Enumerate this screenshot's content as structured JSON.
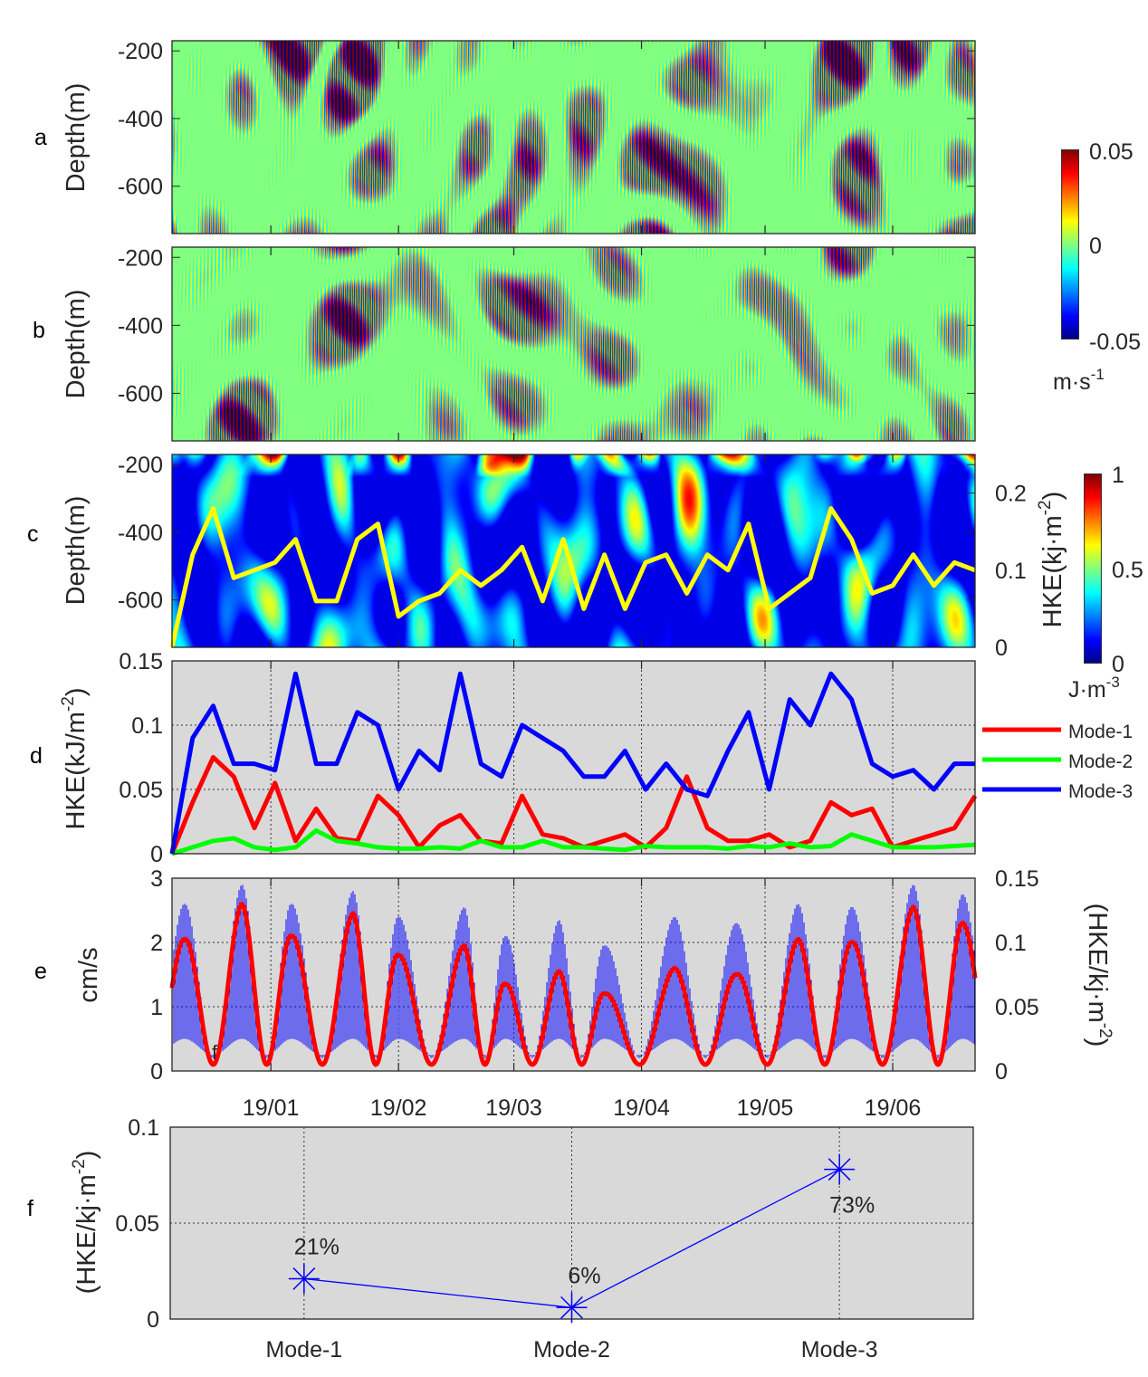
{
  "panel_letters": {
    "a": "a",
    "b": "b",
    "c": "c",
    "d": "d",
    "e": "e",
    "f": "f"
  },
  "colors": {
    "mode1": "#ff0000",
    "mode2": "#00ff00",
    "mode3": "#0000ff",
    "yellow_line": "#ffff00",
    "panel_bg": "#d9d9d9",
    "envelope": "#0000ff",
    "modal_hke": "#ff0000"
  },
  "date_ticks": [
    {
      "date": "2019-01-01",
      "label": "19/01"
    },
    {
      "date": "2019-02-01",
      "label": "19/02"
    },
    {
      "date": "2019-03-01",
      "label": "19/03"
    },
    {
      "date": "2019-04-01",
      "label": "19/04"
    },
    {
      "date": "2019-05-01",
      "label": "19/05"
    },
    {
      "date": "2019-06-01",
      "label": "19/06"
    }
  ],
  "xlim": [
    "2018-12-08",
    "2019-06-21"
  ],
  "chart_data": [
    {
      "id": "a",
      "type": "heatmap",
      "ylabel": "Depth(m)",
      "ylim": [
        -740,
        -170
      ],
      "yticks": [
        -200,
        -400,
        -600
      ],
      "colormap": "jet",
      "clim": [
        -0.05,
        0.05
      ],
      "colorbar": {
        "ticks": [
          "0.05",
          "0",
          "-0.05"
        ],
        "unit": "m·s",
        "unit_sup": "-1"
      }
    },
    {
      "id": "b",
      "type": "heatmap",
      "ylabel": "Depth(m)",
      "ylim": [
        -740,
        -170
      ],
      "yticks": [
        -200,
        -400,
        -600
      ],
      "colormap": "jet",
      "clim": [
        -0.05,
        0.05
      ]
    },
    {
      "id": "c",
      "type": "heatmap",
      "ylabel": "Depth(m)",
      "ylim": [
        -740,
        -170
      ],
      "yticks": [
        -200,
        -400,
        -600
      ],
      "colormap": "jet",
      "clim": [
        0,
        1
      ],
      "colorbar": {
        "ticks": [
          "1",
          "0.5",
          "0"
        ],
        "unit": "J·m",
        "unit_sup": "-3"
      },
      "right_axis": {
        "label": "HKE(kj·m",
        "label_sup": "-2",
        "label_end": ")",
        "ylim": [
          0,
          0.25
        ],
        "yticks": [
          "0",
          "0.1",
          "0.2"
        ]
      },
      "line": {
        "x": [
          "2018-12-08",
          "2018-12-13",
          "2018-12-18",
          "2018-12-23",
          "2018-12-28",
          "2019-01-02",
          "2019-01-07",
          "2019-01-12",
          "2019-01-17",
          "2019-01-22",
          "2019-01-27",
          "2019-02-01",
          "2019-02-06",
          "2019-02-11",
          "2019-02-16",
          "2019-02-21",
          "2019-02-26",
          "2019-03-03",
          "2019-03-08",
          "2019-03-13",
          "2019-03-18",
          "2019-03-23",
          "2019-03-28",
          "2019-04-02",
          "2019-04-07",
          "2019-04-12",
          "2019-04-17",
          "2019-04-22",
          "2019-04-27",
          "2019-05-02",
          "2019-05-07",
          "2019-05-12",
          "2019-05-17",
          "2019-05-22",
          "2019-05-27",
          "2019-06-01",
          "2019-06-06",
          "2019-06-11",
          "2019-06-16",
          "2019-06-21"
        ],
        "y": [
          0,
          0.12,
          0.18,
          0.09,
          0.1,
          0.11,
          0.14,
          0.06,
          0.06,
          0.14,
          0.16,
          0.04,
          0.06,
          0.07,
          0.1,
          0.08,
          0.1,
          0.13,
          0.06,
          0.14,
          0.05,
          0.12,
          0.05,
          0.11,
          0.12,
          0.07,
          0.12,
          0.1,
          0.16,
          0.05,
          0.07,
          0.09,
          0.18,
          0.14,
          0.07,
          0.08,
          0.12,
          0.08,
          0.11,
          0.1
        ]
      }
    },
    {
      "id": "d",
      "type": "line",
      "ylabel": "HKE(kJ/m",
      "ylabel_sup": "-2",
      "ylabel_end": ")",
      "ylim": [
        0,
        0.15
      ],
      "yticks": [
        "0",
        "0.05",
        "0.1",
        "0.15"
      ],
      "grid": true,
      "legend": "right",
      "x": [
        "2018-12-08",
        "2018-12-13",
        "2018-12-18",
        "2018-12-23",
        "2018-12-28",
        "2019-01-02",
        "2019-01-07",
        "2019-01-12",
        "2019-01-17",
        "2019-01-22",
        "2019-01-27",
        "2019-02-01",
        "2019-02-06",
        "2019-02-11",
        "2019-02-16",
        "2019-02-21",
        "2019-02-26",
        "2019-03-03",
        "2019-03-08",
        "2019-03-13",
        "2019-03-18",
        "2019-03-23",
        "2019-03-28",
        "2019-04-02",
        "2019-04-07",
        "2019-04-12",
        "2019-04-17",
        "2019-04-22",
        "2019-04-27",
        "2019-05-02",
        "2019-05-07",
        "2019-05-12",
        "2019-05-17",
        "2019-05-22",
        "2019-05-27",
        "2019-06-01",
        "2019-06-06",
        "2019-06-11",
        "2019-06-16",
        "2019-06-21"
      ],
      "series": [
        {
          "name": "Mode-1",
          "color": "#ff0000",
          "values": [
            0,
            0.04,
            0.075,
            0.06,
            0.02,
            0.055,
            0.01,
            0.035,
            0.012,
            0.01,
            0.045,
            0.03,
            0.005,
            0.022,
            0.03,
            0.01,
            0.008,
            0.045,
            0.015,
            0.012,
            0.005,
            0.01,
            0.015,
            0.005,
            0.02,
            0.06,
            0.02,
            0.01,
            0.01,
            0.015,
            0.005,
            0.01,
            0.04,
            0.03,
            0.035,
            0.005,
            0.01,
            0.015,
            0.02,
            0.045
          ]
        },
        {
          "name": "Mode-2",
          "color": "#00ff00",
          "values": [
            0,
            0.005,
            0.01,
            0.012,
            0.005,
            0.003,
            0.005,
            0.018,
            0.01,
            0.008,
            0.005,
            0.004,
            0.004,
            0.005,
            0.004,
            0.01,
            0.005,
            0.005,
            0.01,
            0.005,
            0.005,
            0.004,
            0.003,
            0.006,
            0.005,
            0.005,
            0.005,
            0.004,
            0.006,
            0.005,
            0.008,
            0.005,
            0.006,
            0.015,
            0.01,
            0.005,
            0.005,
            0.005,
            0.006,
            0.007
          ]
        },
        {
          "name": "Mode-3",
          "color": "#0000ff",
          "values": [
            0,
            0.09,
            0.115,
            0.07,
            0.07,
            0.065,
            0.14,
            0.07,
            0.07,
            0.11,
            0.1,
            0.05,
            0.08,
            0.065,
            0.14,
            0.07,
            0.06,
            0.1,
            0.09,
            0.08,
            0.06,
            0.06,
            0.08,
            0.05,
            0.07,
            0.05,
            0.045,
            0.08,
            0.11,
            0.05,
            0.12,
            0.1,
            0.14,
            0.12,
            0.07,
            0.06,
            0.065,
            0.05,
            0.07,
            0.07
          ]
        }
      ]
    },
    {
      "id": "e",
      "type": "line",
      "ylabel": "cm/s",
      "ylim": [
        0,
        3
      ],
      "yticks": [
        "0",
        "1",
        "2",
        "3"
      ],
      "grid": true,
      "right_axis": {
        "label": "(HKE/kj·m",
        "label_sup": "-2",
        "label_end": ")",
        "ylim": [
          0,
          0.15
        ],
        "yticks": [
          "0",
          "0.05",
          "0.1",
          "0.15"
        ]
      },
      "annotation": "f",
      "peaks": {
        "x": [
          "2018-12-11",
          "2018-12-25",
          "2019-01-06",
          "2019-01-21",
          "2019-02-01",
          "2019-02-17",
          "2019-02-27",
          "2019-03-12",
          "2019-03-23",
          "2019-04-09",
          "2019-04-24",
          "2019-05-09",
          "2019-05-22",
          "2019-06-06",
          "2019-06-18"
        ],
        "hke_cm_s": [
          2.05,
          2.6,
          2.1,
          2.45,
          1.8,
          1.95,
          1.35,
          1.55,
          1.2,
          1.6,
          1.5,
          2.05,
          2.0,
          2.55,
          2.3
        ],
        "envelope_max": [
          2.6,
          2.9,
          2.6,
          2.8,
          2.4,
          2.55,
          2.1,
          2.35,
          1.95,
          2.4,
          2.3,
          2.6,
          2.55,
          2.9,
          2.75
        ]
      },
      "trough_value": 0.1,
      "envelope_min": 0.5
    },
    {
      "id": "f",
      "type": "line",
      "categories": [
        "Mode-1",
        "Mode-2",
        "Mode-3"
      ],
      "values": [
        0.021,
        0.006,
        0.078
      ],
      "data_labels": [
        "21%",
        "6%",
        "73%"
      ],
      "ylabel": "(HKE/kj·m",
      "ylabel_sup": "-2",
      "ylabel_end": ")",
      "ylim": [
        0,
        0.1
      ],
      "yticks": [
        "0",
        "0.05",
        "0.1"
      ],
      "grid": true,
      "marker": "asterisk",
      "color": "#0000ff"
    }
  ]
}
